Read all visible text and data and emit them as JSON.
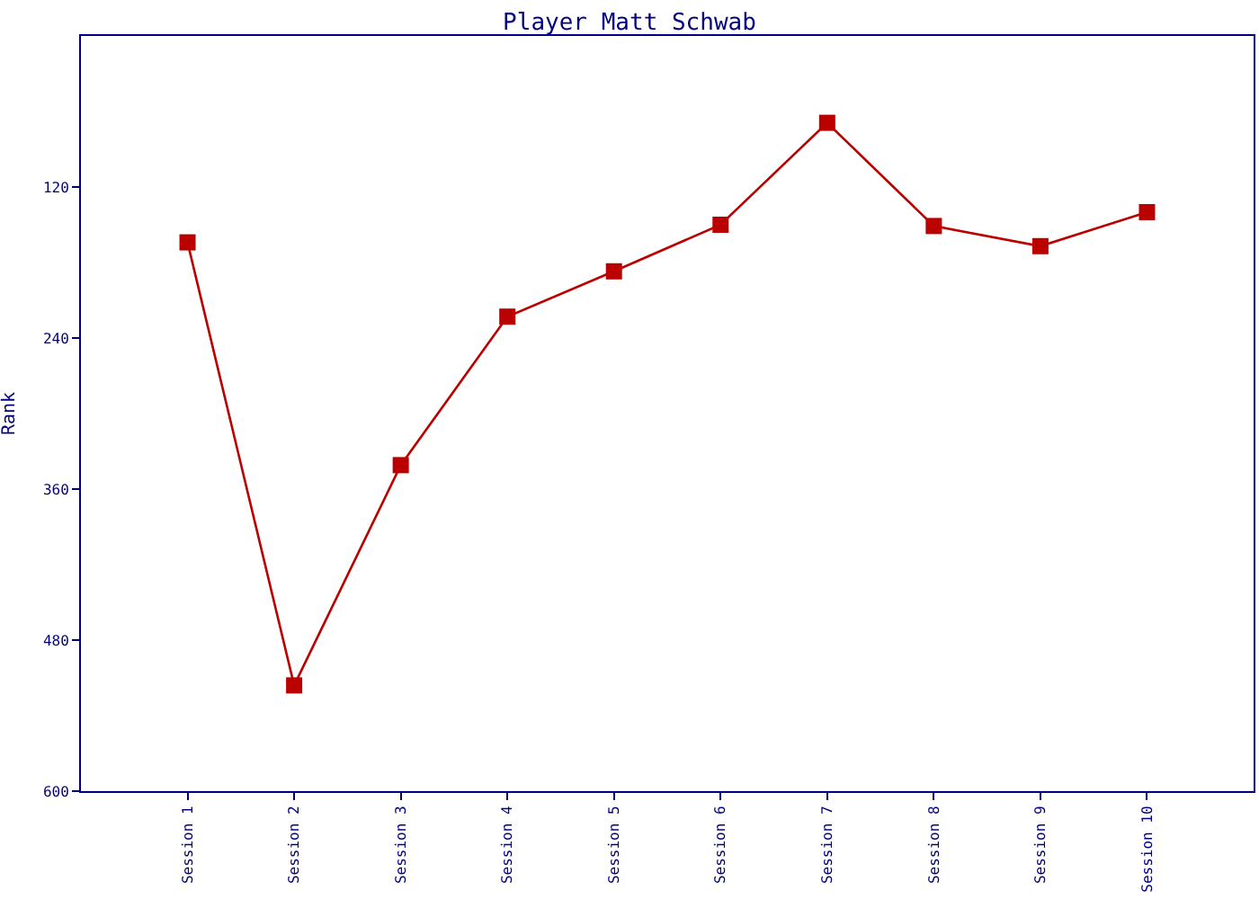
{
  "chart_data": {
    "type": "line",
    "title": "Player Matt Schwab",
    "ylabel": "Rank",
    "categories": [
      "Session 1",
      "Session 2",
      "Session 3",
      "Session 4",
      "Session 5",
      "Session 6",
      "Session 7",
      "Session 8",
      "Session 9",
      "Session 10"
    ],
    "series": [
      {
        "color": "#bb0000",
        "values": [
          164,
          516,
          341,
          223,
          187,
          150,
          69,
          151,
          167,
          140
        ]
      }
    ],
    "ylim": [
      600,
      0
    ],
    "yticks": [
      120,
      240,
      360,
      480,
      600
    ],
    "marker": "square",
    "line_style": "solid"
  }
}
